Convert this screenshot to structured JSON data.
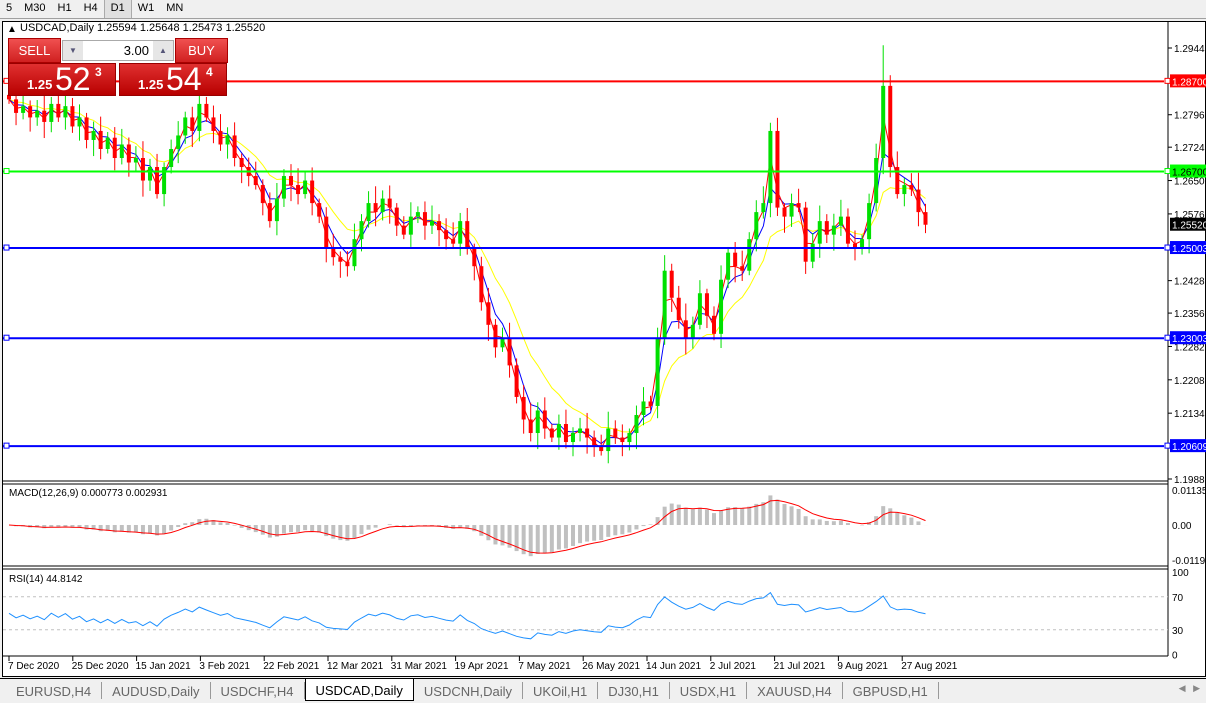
{
  "toolbar": {
    "timeframes": [
      "5",
      "M30",
      "H1",
      "H4",
      "D1",
      "W1",
      "MN"
    ],
    "selected": "D1"
  },
  "chart": {
    "symbol_line": "USDCAD,Daily  1.25594 1.25648 1.25473 1.25520"
  },
  "trade_panel": {
    "sell_label": "SELL",
    "buy_label": "BUY",
    "lot": "3.00",
    "sell_price": {
      "prefix": "1.25",
      "big": "52",
      "pip": "3"
    },
    "buy_price": {
      "prefix": "1.25",
      "big": "54",
      "pip": "4"
    }
  },
  "colors": {
    "bull": "#00e000",
    "bear": "#ff0000",
    "ma_fast": "#ff0000",
    "ma_mid": "#0000ff",
    "ma_slow": "#ffff00"
  },
  "chart_data": {
    "type": "candlestick",
    "symbol": "USDCAD",
    "timeframe": "Daily",
    "ylim": [
      1.1988,
      1.2944
    ],
    "y_ticks": [
      "1.29440",
      "1.27960",
      "1.27240",
      "1.26500",
      "1.25760",
      "1.24280",
      "1.23560",
      "1.22820",
      "1.22080",
      "1.21340",
      "1.19880"
    ],
    "x_ticks": [
      "7 Dec 2020",
      "25 Dec 2020",
      "15 Jan 2021",
      "3 Feb 2021",
      "22 Feb 2021",
      "12 Mar 2021",
      "31 Mar 2021",
      "19 Apr 2021",
      "7 May 2021",
      "26 May 2021",
      "14 Jun 2021",
      "2 Jul 2021",
      "21 Jul 2021",
      "9 Aug 2021",
      "27 Aug 2021"
    ],
    "current_price": {
      "label": "1.25520",
      "value": 1.2552
    },
    "hlines": [
      {
        "label": "1.28700",
        "value": 1.287,
        "color": "#ff0000"
      },
      {
        "label": "1.26700",
        "value": 1.267,
        "color": "#00ff00"
      },
      {
        "label": "1.25003",
        "value": 1.25003,
        "color": "#0000ff"
      },
      {
        "label": "1.23003",
        "value": 1.23003,
        "color": "#0000ff"
      },
      {
        "label": "1.20609",
        "value": 1.20609,
        "color": "#0000ff"
      }
    ],
    "closes": [
      1.283,
      1.28,
      1.2815,
      1.279,
      1.2805,
      1.278,
      1.282,
      1.279,
      1.2815,
      1.277,
      1.279,
      1.274,
      1.276,
      1.272,
      1.2745,
      1.27,
      1.273,
      1.269,
      1.27,
      1.265,
      1.268,
      1.262,
      1.268,
      1.272,
      1.275,
      1.279,
      1.276,
      1.282,
      1.279,
      1.276,
      1.273,
      1.275,
      1.27,
      1.268,
      1.266,
      1.264,
      1.26,
      1.256,
      1.261,
      1.266,
      1.264,
      1.262,
      1.265,
      1.26,
      1.257,
      1.25,
      1.248,
      1.247,
      1.246,
      1.252,
      1.256,
      1.26,
      1.258,
      1.261,
      1.259,
      1.255,
      1.253,
      1.257,
      1.258,
      1.255,
      1.256,
      1.254,
      1.252,
      1.251,
      1.256,
      1.25,
      1.246,
      1.238,
      1.233,
      1.228,
      1.23,
      1.224,
      1.217,
      1.212,
      1.209,
      1.214,
      1.21,
      1.208,
      1.211,
      1.207,
      1.209,
      1.21,
      1.208,
      1.206,
      1.205,
      1.21,
      1.208,
      1.207,
      1.209,
      1.213,
      1.216,
      1.215,
      1.23,
      1.245,
      1.239,
      1.234,
      1.23,
      1.233,
      1.24,
      1.235,
      1.231,
      1.243,
      1.249,
      1.246,
      1.245,
      1.252,
      1.258,
      1.26,
      1.276,
      1.259,
      1.257,
      1.26,
      1.259,
      1.247,
      1.251,
      1.256,
      1.253,
      1.255,
      1.257,
      1.251,
      1.25,
      1.252,
      1.26,
      1.27,
      1.286,
      1.268,
      1.262,
      1.264,
      1.263,
      1.258,
      1.2552
    ],
    "spike_highs": {
      "124": 1.295
    },
    "macd": {
      "label": "MACD(12,26,9) 0.000773 0.002931",
      "ylim": [
        -0.0119,
        0.01135
      ],
      "ticks": [
        "0.01135",
        "0.00",
        "-0.01190"
      ]
    },
    "rsi": {
      "label": "RSI(14) 44.8142",
      "ticks": [
        "100",
        "70",
        "30",
        "0"
      ],
      "levels": [
        70,
        30
      ]
    }
  },
  "tabs": [
    "EURUSD,H4",
    "AUDUSD,Daily",
    "USDCHF,H4",
    "USDCAD,Daily",
    "USDCNH,Daily",
    "UKOil,H1",
    "DJ30,H1",
    "USDX,H1",
    "XAUUSD,H4",
    "GBPUSD,H1"
  ],
  "active_tab": "USDCAD,Daily"
}
